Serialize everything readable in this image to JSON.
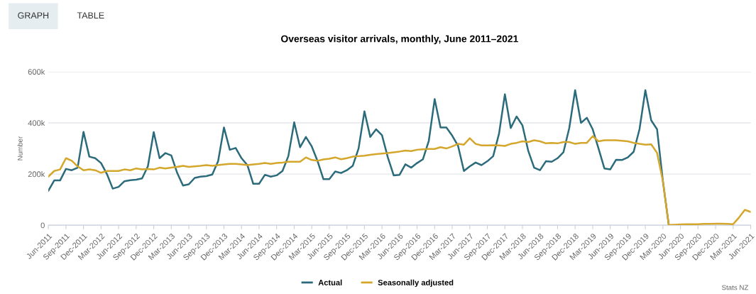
{
  "chart_data": {
    "type": "line",
    "title": "Overseas visitor arrivals, monthly, June 2011–2021",
    "ylabel": "Number",
    "annotations": [
      "GRAPH",
      "TABLE",
      "Stats NZ"
    ],
    "categories": [
      "Jun-2011",
      null,
      null,
      "Sep-2011",
      null,
      null,
      "Dec-2011",
      null,
      null,
      "Mar-2012",
      null,
      null,
      "Jun-2012",
      null,
      null,
      "Sep-2012",
      null,
      null,
      "Dec-2012",
      null,
      null,
      "Mar-2013",
      null,
      null,
      "Jun-2013",
      null,
      null,
      "Sep-2013",
      null,
      null,
      "Dec-2013",
      null,
      null,
      "Mar-2014",
      null,
      null,
      "Jun-2014",
      null,
      null,
      "Sep-2014",
      null,
      null,
      "Dec-2014",
      null,
      null,
      "Mar-2015",
      null,
      null,
      "Jun-2015",
      null,
      null,
      "Sep-2015",
      null,
      null,
      "Dec-2015",
      null,
      null,
      "Mar-2016",
      null,
      null,
      "Jun-2016",
      null,
      null,
      "Sep-2016",
      null,
      null,
      "Dec-2016",
      null,
      null,
      "Mar-2017",
      null,
      null,
      "Jun-2017",
      null,
      null,
      "Sep-2017",
      null,
      null,
      "Dec-2017",
      null,
      null,
      "Mar-2018",
      null,
      null,
      "Jun-2018",
      null,
      null,
      "Sep-2018",
      null,
      null,
      "Dec-2018",
      null,
      null,
      "Mar-2019",
      null,
      null,
      "Jun-2019",
      null,
      null,
      "Sep-2019",
      null,
      null,
      "Dec-2019",
      null,
      null,
      "Mar-2020",
      null,
      null,
      "Jun-2020",
      null,
      null,
      "Sep-2020",
      null,
      null,
      "Dec-2020",
      null,
      null,
      "Mar-2021",
      null,
      null,
      "Jun-2021"
    ],
    "series": [
      {
        "name": "Actual",
        "color": "#2b6b7b",
        "values": [
          135000,
          175000,
          175000,
          220000,
          215000,
          225000,
          365000,
          268000,
          262000,
          243000,
          200000,
          143000,
          150000,
          172000,
          176000,
          178000,
          183000,
          230000,
          364000,
          262000,
          282000,
          273000,
          205000,
          155000,
          160000,
          185000,
          190000,
          192000,
          198000,
          250000,
          382000,
          295000,
          302000,
          262000,
          235000,
          162000,
          162000,
          197000,
          190000,
          195000,
          212000,
          270000,
          402000,
          305000,
          345000,
          308000,
          250000,
          180000,
          180000,
          210000,
          204000,
          215000,
          232000,
          300000,
          445000,
          345000,
          375000,
          352000,
          265000,
          195000,
          197000,
          238000,
          225000,
          243000,
          258000,
          330000,
          493000,
          382000,
          382000,
          350000,
          310000,
          212000,
          230000,
          245000,
          235000,
          250000,
          270000,
          358000,
          512000,
          380000,
          425000,
          390000,
          290000,
          225000,
          215000,
          250000,
          248000,
          262000,
          285000,
          380000,
          528000,
          400000,
          420000,
          375000,
          300000,
          222000,
          218000,
          256000,
          255000,
          265000,
          287000,
          375000,
          528000,
          410000,
          375000,
          172000,
          1000,
          null,
          null,
          null,
          null,
          null,
          null,
          null,
          null,
          null,
          null,
          null,
          null,
          null,
          null
        ]
      },
      {
        "name": "Seasonally adjusted",
        "color": "#d4a72c",
        "values": [
          190000,
          212000,
          218000,
          262000,
          252000,
          230000,
          215000,
          218000,
          215000,
          205000,
          212000,
          212000,
          212000,
          218000,
          215000,
          222000,
          218000,
          220000,
          218000,
          225000,
          222000,
          225000,
          228000,
          232000,
          228000,
          230000,
          232000,
          235000,
          232000,
          235000,
          238000,
          240000,
          240000,
          238000,
          235000,
          238000,
          240000,
          243000,
          240000,
          243000,
          245000,
          248000,
          248000,
          248000,
          265000,
          255000,
          252000,
          257000,
          260000,
          265000,
          258000,
          262000,
          268000,
          270000,
          272000,
          275000,
          278000,
          280000,
          282000,
          285000,
          288000,
          292000,
          290000,
          295000,
          297000,
          298000,
          298000,
          305000,
          300000,
          308000,
          318000,
          315000,
          340000,
          318000,
          312000,
          312000,
          313000,
          312000,
          310000,
          318000,
          322000,
          328000,
          325000,
          332000,
          328000,
          320000,
          322000,
          320000,
          325000,
          325000,
          318000,
          322000,
          322000,
          348000,
          328000,
          332000,
          332000,
          332000,
          330000,
          328000,
          322000,
          318000,
          315000,
          316000,
          283000,
          172000,
          1000,
          2000,
          3000,
          4000,
          4000,
          4000,
          5000,
          5000,
          6000,
          6000,
          5000,
          4000,
          30000,
          60000,
          52000
        ]
      }
    ],
    "ylim": [
      0,
      600000
    ],
    "yticks": [
      {
        "value": 0,
        "label": "0"
      },
      {
        "value": 200000,
        "label": "200k"
      },
      {
        "value": 400000,
        "label": "400k"
      },
      {
        "value": 600000,
        "label": "600k"
      }
    ],
    "grid": "y",
    "legend": "bottom",
    "marker": "none",
    "line_style": "solid"
  }
}
